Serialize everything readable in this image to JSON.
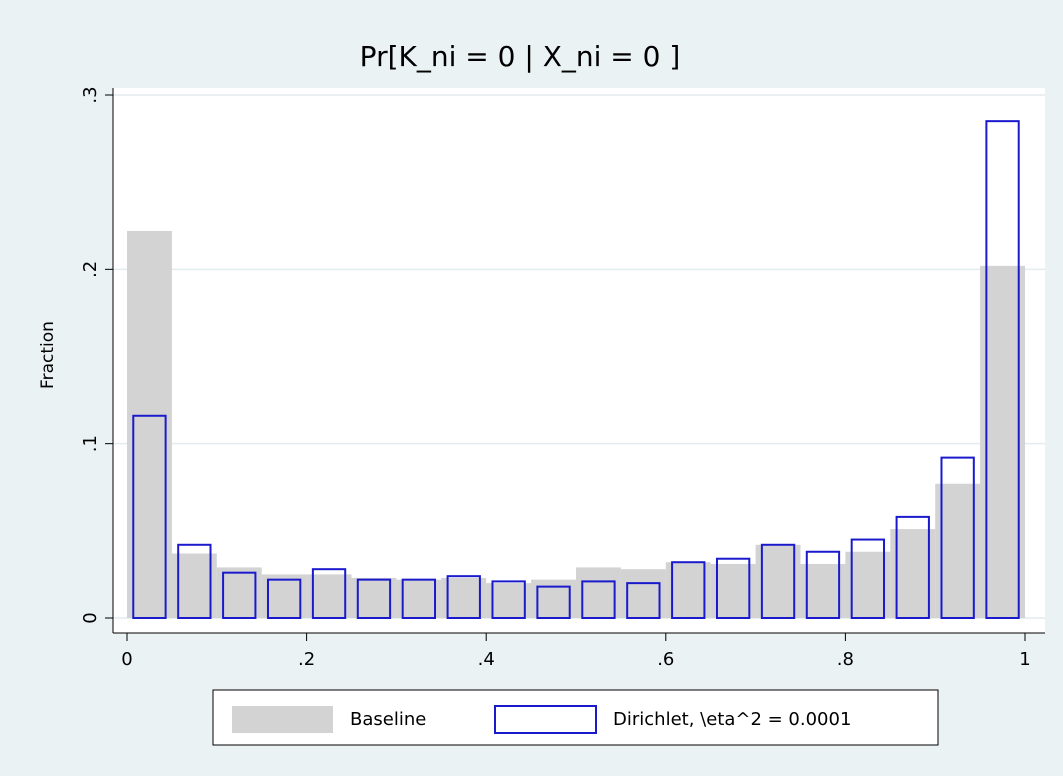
{
  "chart_data": {
    "type": "histogram",
    "title": "Pr[K_ni = 0 | X_ni = 0 ]",
    "y_label": "Fraction",
    "bins": [
      0,
      0.05,
      0.1,
      0.15,
      0.2,
      0.25,
      0.3,
      0.35,
      0.4,
      0.45,
      0.5,
      0.55,
      0.6,
      0.65,
      0.7,
      0.75,
      0.8,
      0.85,
      0.9,
      0.95,
      1
    ],
    "series": [
      {
        "name": "Baseline",
        "color": "#d3d3d3",
        "style": "filled",
        "values": [
          0.222,
          0.037,
          0.029,
          0.025,
          0.025,
          0.023,
          0.022,
          0.023,
          0.02,
          0.022,
          0.029,
          0.028,
          0.032,
          0.031,
          0.042,
          0.031,
          0.038,
          0.051,
          0.077,
          0.202
        ]
      },
      {
        "name": "Dirichlet, \\eta^2 = 0.0001",
        "color": "#1a1acc",
        "style": "outline",
        "values": [
          0.116,
          0.042,
          0.026,
          0.022,
          0.028,
          0.022,
          0.022,
          0.024,
          0.021,
          0.018,
          0.021,
          0.02,
          0.032,
          0.034,
          0.042,
          0.038,
          0.045,
          0.058,
          0.092,
          0.285
        ]
      }
    ],
    "xlim": [
      0,
      1
    ],
    "xticks": [
      0,
      {
        "value": 0.2,
        "label": ".2"
      },
      {
        "value": 0.4,
        "label": ".4"
      },
      {
        "value": 0.6,
        "label": ".6"
      },
      {
        "value": 0.8,
        "label": ".8"
      },
      1
    ],
    "ylim": [
      0,
      0.3
    ],
    "yticks": [
      0,
      {
        "value": 0.1,
        "label": ".1"
      },
      {
        "value": 0.2,
        "label": ".2"
      },
      {
        "value": 0.3,
        "label": ".3"
      }
    ],
    "grid": true,
    "legend": "bottom"
  }
}
